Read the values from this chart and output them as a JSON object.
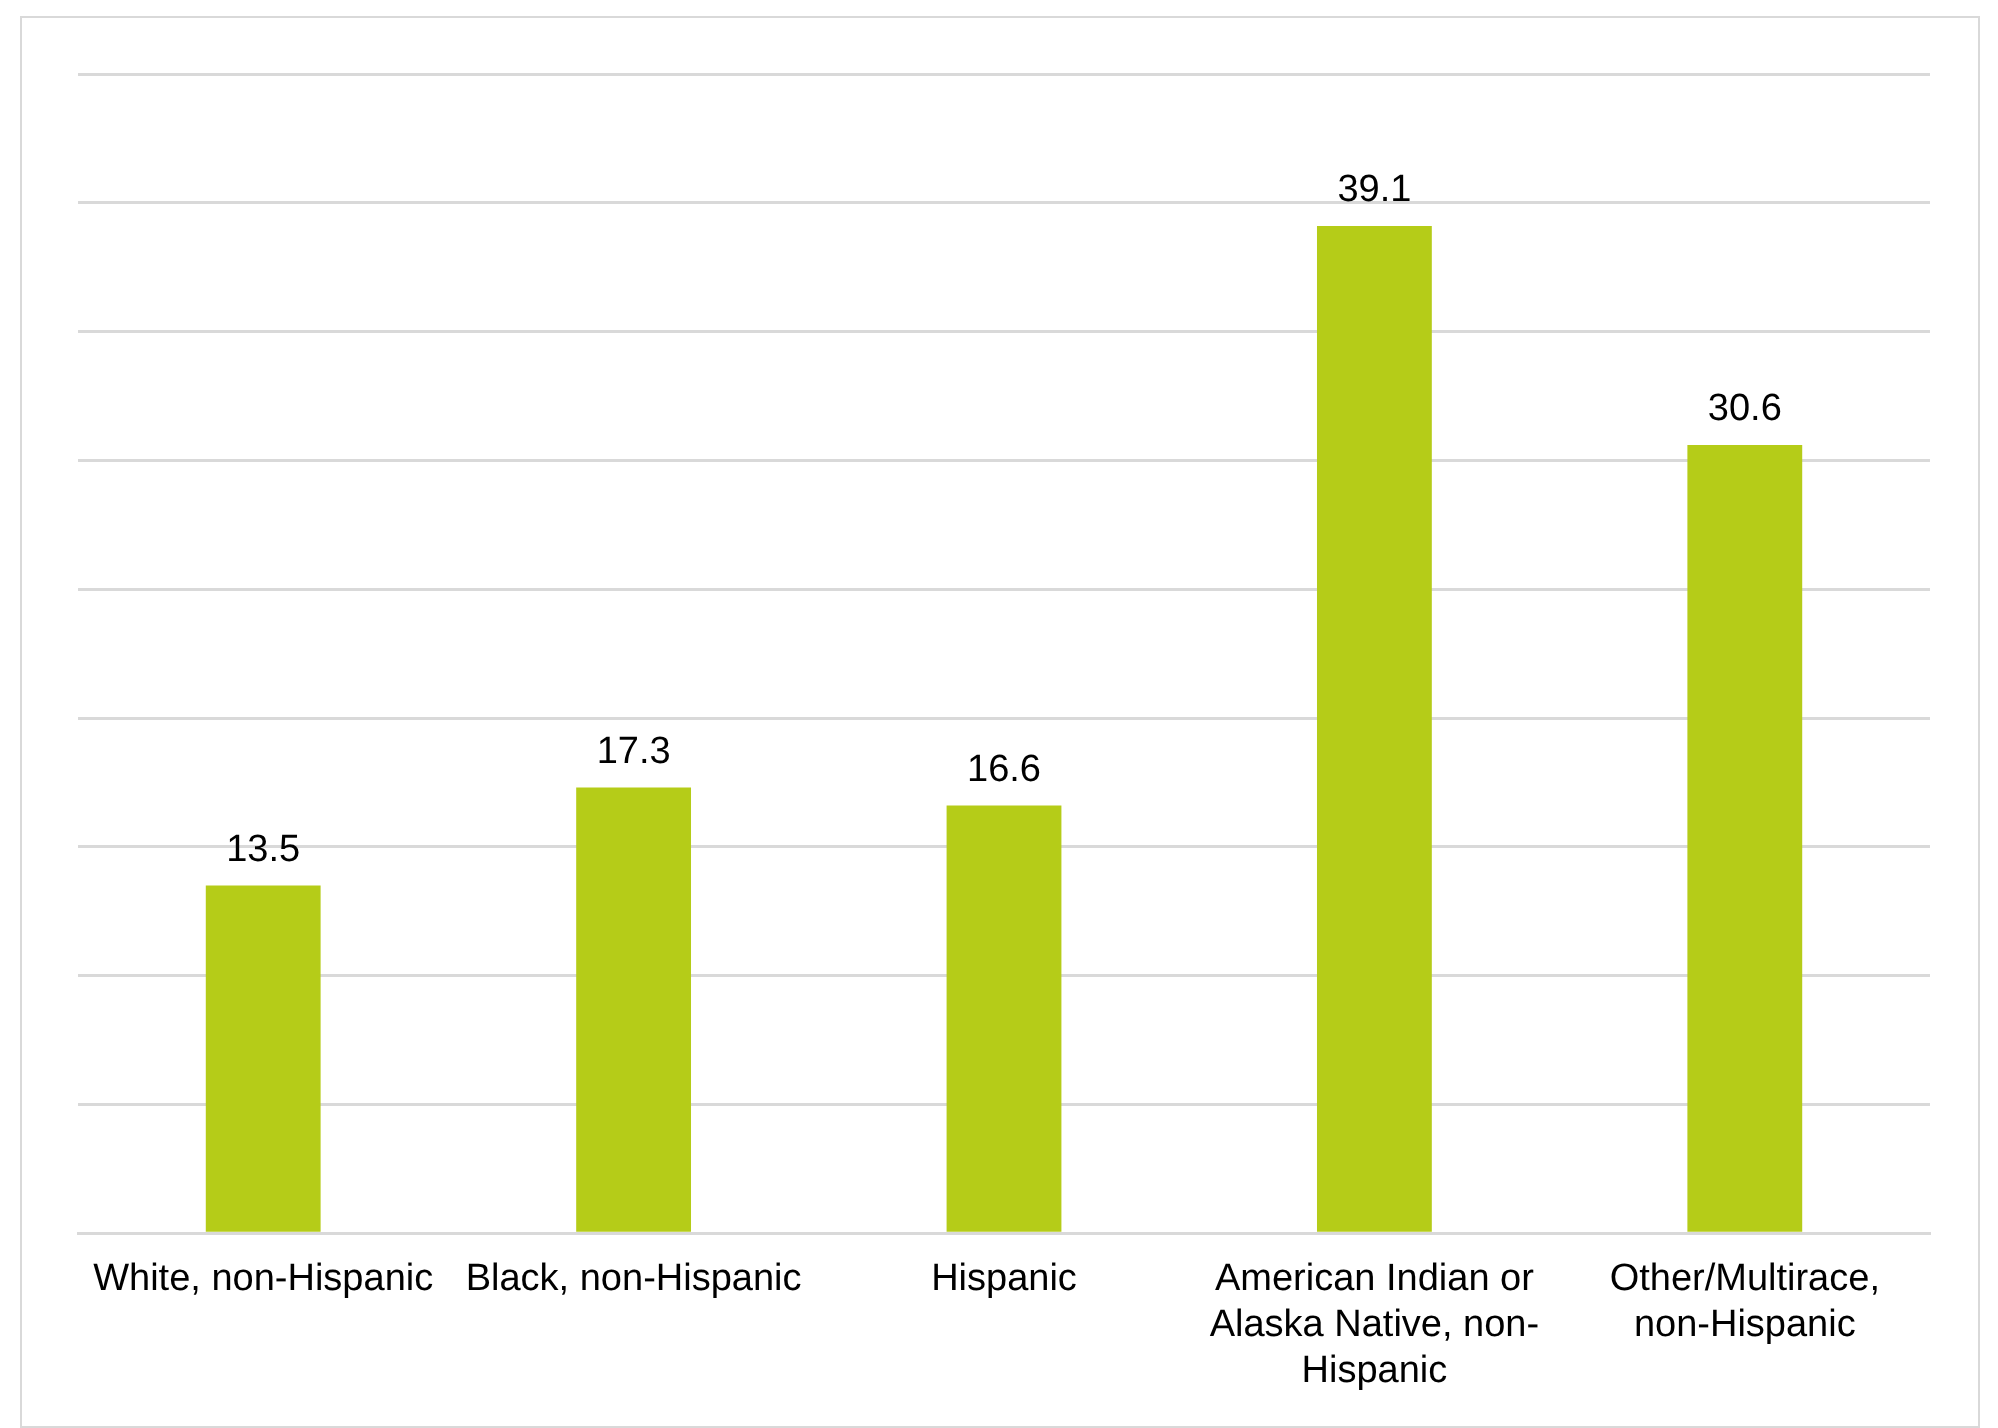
{
  "chart_data": {
    "type": "bar",
    "categories": [
      "White, non-Hispanic",
      "Black, non-Hispanic",
      "Hispanic",
      "American Indian or Alaska Native, non-Hispanic",
      "Other/Multirace, non-Hispanic"
    ],
    "values": [
      13.5,
      17.3,
      16.6,
      39.1,
      30.6
    ],
    "color": "#b5cc18",
    "ylim": [
      0,
      45
    ],
    "yticks": [
      {
        "value": 0,
        "label": null
      },
      {
        "value": 5,
        "label": null
      },
      {
        "value": 10,
        "label": null
      },
      {
        "value": 15,
        "label": null
      },
      {
        "value": 20,
        "label": null
      },
      {
        "value": 25,
        "label": null
      },
      {
        "value": 30,
        "label": null
      },
      {
        "value": 35,
        "label": null
      },
      {
        "value": 40,
        "label": null
      },
      {
        "value": 45,
        "label": null
      }
    ],
    "grid": "y",
    "tick_labels": "x",
    "data_labels": true
  }
}
